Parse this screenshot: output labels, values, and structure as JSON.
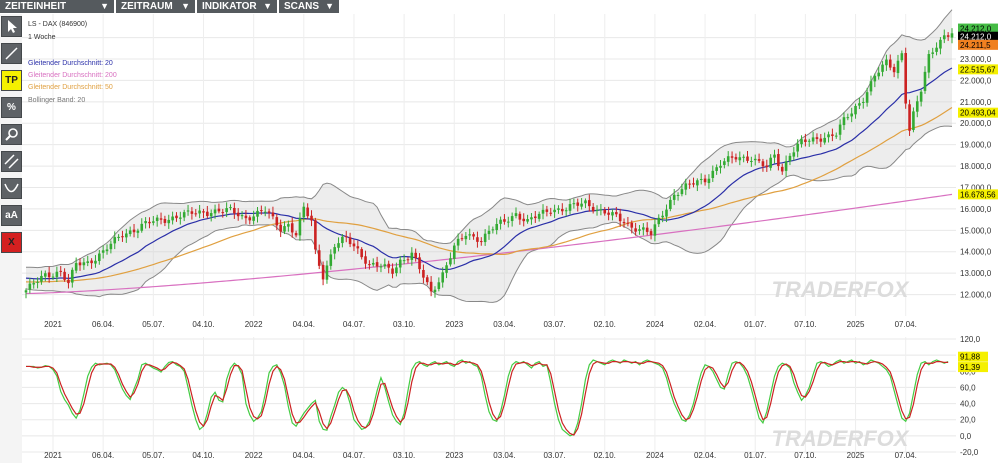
{
  "menu": [
    {
      "label": "ZEITEINHEIT",
      "arrow": "▼"
    },
    {
      "label": "ZEITRAUM",
      "arrow": "▼"
    },
    {
      "label": "INDIKATOR",
      "arrow": "▼"
    },
    {
      "label": "SCANS",
      "arrow": "▼"
    }
  ],
  "tools": [
    "cursor-icon",
    "line-draw-icon",
    "TP",
    "%",
    "search-icon",
    "parallel-lines-icon",
    "curve-icon",
    "aA",
    "X"
  ],
  "tool_labels": {
    "tp": "TP",
    "percent": "%",
    "text": "aA",
    "delete": "X"
  },
  "chart_data": [
    {
      "type": "candlestick",
      "title": "LS - DAX (846900)",
      "subtitle": "1 Woche",
      "legend": [
        {
          "name": "Gleitender Durchschnitt: 20",
          "color": "#2a2fa8"
        },
        {
          "name": "Gleitender Durchschnitt: 200",
          "color": "#d870c0"
        },
        {
          "name": "Gleitender Durchschnitt: 50",
          "color": "#e0a040"
        },
        {
          "name": "Bollinger Band: 20",
          "color": "#888888"
        }
      ],
      "x_ticks": [
        "2021",
        "06.04.",
        "05.07.",
        "04.10.",
        "2022",
        "04.04.",
        "04.07.",
        "03.10.",
        "2023",
        "03.04.",
        "03.07.",
        "02.10.",
        "2024",
        "02.04.",
        "01.07.",
        "07.10.",
        "2025",
        "07.04."
      ],
      "y_ticks": [
        "12.000,0",
        "13.000,0",
        "14.000,0",
        "15.000,0",
        "16.000,0",
        "17.000,0",
        "18.000,0",
        "19.000,0",
        "20.000,0",
        "21.000,0",
        "22.000,0",
        "23.000,0",
        "24.000,0"
      ],
      "ylim": [
        11000,
        24400
      ],
      "price_labels": [
        {
          "text": "24.212,0",
          "bg": "#44bb44",
          "fg": "#000000",
          "value": 24420
        },
        {
          "text": "24.212,0",
          "bg": "#000000",
          "fg": "#ffffff",
          "value": 24040
        },
        {
          "text": "24.211,5",
          "bg": "#f08020",
          "fg": "#000000",
          "value": 23660
        },
        {
          "text": "22.515,67",
          "bg": "#f5f000",
          "fg": "#000000",
          "value": 22515.67
        },
        {
          "text": "20.493,04",
          "bg": "#f5f000",
          "fg": "#000000",
          "value": 20493.04
        },
        {
          "text": "16.678,56",
          "bg": "#f5f000",
          "fg": "#000000",
          "value": 16678.56
        }
      ],
      "watermark": "TRADERFOX",
      "anchors_close": [
        [
          0,
          12200
        ],
        [
          5,
          12900
        ],
        [
          9,
          13100
        ],
        [
          11,
          12500
        ],
        [
          13,
          13400
        ],
        [
          16,
          13500
        ],
        [
          20,
          14000
        ],
        [
          25,
          14800
        ],
        [
          31,
          15300
        ],
        [
          40,
          15700
        ],
        [
          48,
          15900
        ],
        [
          53,
          15900
        ],
        [
          57,
          15600
        ],
        [
          62,
          15900
        ],
        [
          66,
          15100
        ],
        [
          68,
          15300
        ],
        [
          70,
          14800
        ],
        [
          72,
          16000
        ],
        [
          74,
          15400
        ],
        [
          75,
          14000
        ],
        [
          77,
          12900
        ],
        [
          80,
          14300
        ],
        [
          83,
          14600
        ],
        [
          86,
          14100
        ],
        [
          89,
          13400
        ],
        [
          92,
          13300
        ],
        [
          95,
          13100
        ],
        [
          97,
          13600
        ],
        [
          100,
          13900
        ],
        [
          103,
          12800
        ],
        [
          105,
          12100
        ],
        [
          108,
          13000
        ],
        [
          111,
          14200
        ],
        [
          114,
          14800
        ],
        [
          118,
          14600
        ],
        [
          121,
          15100
        ],
        [
          124,
          15400
        ],
        [
          127,
          15800
        ],
        [
          130,
          15400
        ],
        [
          133,
          15700
        ],
        [
          136,
          16000
        ],
        [
          140,
          16000
        ],
        [
          145,
          16300
        ],
        [
          149,
          15900
        ],
        [
          153,
          15600
        ],
        [
          157,
          15200
        ],
        [
          160,
          15000
        ],
        [
          162,
          14800
        ],
        [
          165,
          15800
        ],
        [
          168,
          16700
        ],
        [
          172,
          17100
        ],
        [
          176,
          17400
        ],
        [
          180,
          18100
        ],
        [
          184,
          18400
        ],
        [
          188,
          18400
        ],
        [
          192,
          17900
        ],
        [
          194,
          18500
        ],
        [
          196,
          17800
        ],
        [
          198,
          18600
        ],
        [
          201,
          19100
        ],
        [
          204,
          19200
        ],
        [
          207,
          19400
        ],
        [
          210,
          19500
        ],
        [
          212,
          20100
        ],
        [
          214,
          20500
        ],
        [
          217,
          21200
        ],
        [
          220,
          22200
        ],
        [
          223,
          22800
        ],
        [
          225,
          22500
        ],
        [
          227,
          23300
        ],
        [
          228,
          21100
        ],
        [
          229,
          19700
        ],
        [
          230,
          20400
        ],
        [
          232,
          21500
        ],
        [
          234,
          23100
        ],
        [
          236,
          23700
        ],
        [
          238,
          24100
        ],
        [
          240,
          24212
        ]
      ],
      "ma20_color": "#2a2fa8",
      "ma50_color": "#e0a040",
      "ma200_color": "#d870c0",
      "bollinger_color": "#888888",
      "up_color": "#33aa33",
      "down_color": "#cc2222"
    },
    {
      "type": "line",
      "title": "",
      "y_ticks": [
        "-20,0",
        "0,0",
        "20,0",
        "40,0",
        "60,0",
        "80,0",
        "100,0",
        "120,0"
      ],
      "ylim": [
        -20,
        120
      ],
      "value_labels": [
        {
          "text": "91,88",
          "bg": "#f5f000",
          "fg": "#000000",
          "value": 91.88
        },
        {
          "text": "91,39",
          "bg": "#f5f000",
          "fg": "#000000",
          "value": 91.39
        }
      ],
      "x_ticks": [
        "2021",
        "06.04.",
        "05.07.",
        "04.10.",
        "2022",
        "04.04.",
        "04.07.",
        "03.10.",
        "2023",
        "03.04.",
        "03.07.",
        "02.10.",
        "2024",
        "02.04.",
        "01.07.",
        "07.10.",
        "2025",
        "07.04."
      ],
      "watermark": "TRADERFOX",
      "series": [
        {
          "color": "#44cc44",
          "values": [
            86,
            86,
            86,
            84,
            85,
            87,
            86,
            82,
            74,
            55,
            45,
            38,
            28,
            22,
            32,
            52,
            74,
            85,
            90,
            88,
            89,
            90,
            88,
            82,
            70,
            58,
            50,
            45,
            58,
            70,
            88,
            90,
            87,
            84,
            82,
            79,
            86,
            91,
            92,
            88,
            86,
            80,
            60,
            38,
            20,
            8,
            12,
            28,
            48,
            54,
            44,
            42,
            70,
            84,
            90,
            86,
            76,
            40,
            26,
            18,
            22,
            30,
            52,
            78,
            86,
            88,
            78,
            62,
            36,
            16,
            12,
            20,
            28,
            34,
            40,
            44,
            18,
            8,
            7,
            24,
            38,
            54,
            60,
            56,
            40,
            20,
            14,
            8,
            10,
            18,
            36,
            56,
            72,
            60,
            42,
            26,
            18,
            14,
            28,
            56,
            82,
            90,
            92,
            88,
            86,
            90,
            92,
            88,
            90,
            92,
            88,
            86,
            92,
            94,
            90,
            92,
            88,
            86,
            74,
            50,
            30,
            20,
            18,
            30,
            50,
            74,
            88,
            92,
            90,
            92,
            88,
            84,
            90,
            92,
            86,
            88,
            66,
            40,
            20,
            8,
            4,
            0,
            2,
            16,
            40,
            70,
            88,
            94,
            92,
            90,
            88,
            92,
            94,
            92,
            90,
            94,
            92,
            90,
            92,
            88,
            92,
            94,
            92,
            90,
            88,
            84,
            72,
            54,
            40,
            30,
            20,
            18,
            26,
            40,
            60,
            78,
            88,
            86,
            80,
            70,
            60,
            58,
            76,
            90,
            92,
            90,
            84,
            74,
            58,
            40,
            22,
            16,
            30,
            52,
            74,
            86,
            90,
            88,
            84,
            66,
            54,
            44,
            50,
            60,
            76,
            90,
            92,
            90,
            86,
            88,
            92,
            94,
            90,
            92,
            94,
            90,
            92,
            88,
            90,
            94,
            92,
            90,
            86,
            82,
            74,
            56,
            38,
            22,
            18,
            28,
            52,
            76,
            90,
            92,
            88,
            92,
            94,
            92,
            90,
            92
          ]
        },
        {
          "color": "#cc2222",
          "values": [
            86,
            86,
            85,
            85,
            85,
            86,
            86,
            84,
            78,
            64,
            52,
            43,
            34,
            27,
            28,
            40,
            60,
            78,
            87,
            89,
            89,
            89,
            89,
            85,
            76,
            64,
            55,
            48,
            53,
            64,
            80,
            88,
            88,
            86,
            84,
            81,
            83,
            88,
            91,
            90,
            87,
            83,
            70,
            50,
            31,
            17,
            12,
            20,
            37,
            50,
            48,
            44,
            58,
            76,
            87,
            87,
            81,
            58,
            35,
            24,
            21,
            25,
            41,
            64,
            80,
            86,
            82,
            70,
            48,
            27,
            16,
            17,
            23,
            30,
            36,
            41,
            30,
            15,
            9,
            16,
            30,
            45,
            56,
            57,
            48,
            31,
            19,
            12,
            10,
            14,
            27,
            46,
            64,
            65,
            50,
            35,
            24,
            17,
            22,
            41,
            67,
            84,
            90,
            90,
            88,
            88,
            90,
            90,
            89,
            90,
            90,
            88,
            89,
            92,
            92,
            91,
            90,
            88,
            80,
            63,
            42,
            27,
            20,
            24,
            39,
            61,
            80,
            89,
            90,
            91,
            90,
            87,
            88,
            90,
            88,
            88,
            77,
            55,
            32,
            16,
            8,
            3,
            1,
            9,
            27,
            53,
            77,
            89,
            92,
            91,
            90,
            90,
            92,
            92,
            91,
            92,
            92,
            91,
            91,
            90,
            90,
            92,
            92,
            91,
            90,
            87,
            79,
            64,
            48,
            36,
            26,
            20,
            22,
            33,
            49,
            68,
            82,
            86,
            84,
            76,
            66,
            60,
            66,
            81,
            90,
            91,
            87,
            80,
            67,
            50,
            32,
            20,
            23,
            40,
            62,
            79,
            87,
            89,
            86,
            76,
            61,
            50,
            48,
            55,
            67,
            82,
            90,
            91,
            89,
            88,
            90,
            92,
            92,
            91,
            92,
            92,
            91,
            90,
            89,
            91,
            92,
            91,
            89,
            85,
            79,
            65,
            48,
            31,
            21,
            23,
            39,
            63,
            82,
            90,
            90,
            90,
            92,
            92,
            91,
            91
          ]
        }
      ]
    }
  ]
}
